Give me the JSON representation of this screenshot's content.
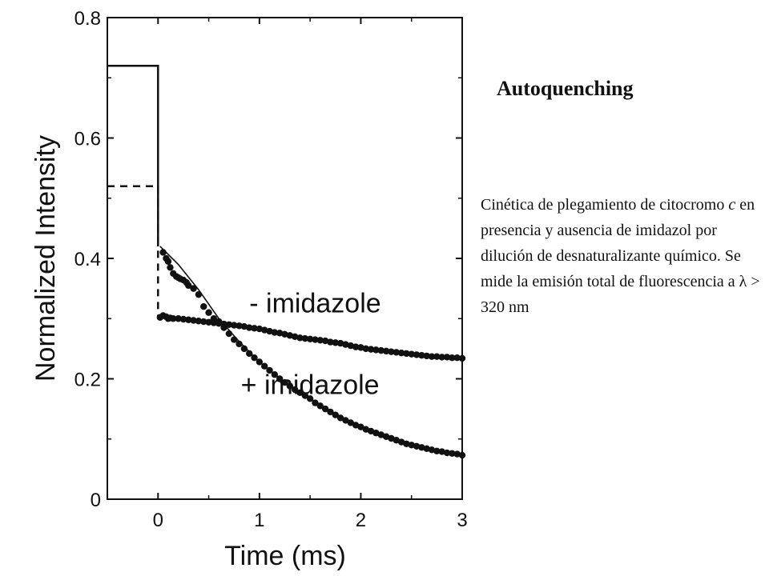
{
  "side": {
    "title": "Autoquenching",
    "desc_part1": "Cinética de plegamiento de citocromo ",
    "desc_italic": "c",
    "desc_part2": " en presencia y ausencia de imidazol por dilución de desnaturalizante químico. Se mide la emisión total  de fluorescencia a λ > 320 nm"
  },
  "chart_data": {
    "type": "line",
    "xlabel": "Time (ms)",
    "ylabel": "Normalized Intensity",
    "xlim": [
      -0.5,
      3
    ],
    "ylim": [
      0,
      0.8
    ],
    "xticks": [
      0,
      1,
      2,
      3
    ],
    "xtick_labels": [
      "0",
      "1",
      "2",
      "3"
    ],
    "yticks": [
      0,
      0.2,
      0.4,
      0.6,
      0.8
    ],
    "ytick_labels": [
      "0",
      "0.2",
      "0.4",
      "0.6",
      "0.8"
    ],
    "annotations": [
      {
        "text": "- imidazole",
        "x": 1.55,
        "y": 0.31
      },
      {
        "text": "+ imidazole",
        "x": 1.5,
        "y": 0.175
      }
    ],
    "series": [
      {
        "style": "solid-step",
        "x": [
          -0.5,
          0.0,
          0.0
        ],
        "y": [
          0.72,
          0.72,
          0.42
        ]
      },
      {
        "style": "dashed-step",
        "x": [
          -0.5,
          0.0,
          0.0
        ],
        "y": [
          0.52,
          0.52,
          0.305
        ]
      },
      {
        "style": "dots",
        "x": [
          0.02,
          0.05,
          0.08,
          0.1,
          0.12,
          0.15,
          0.2,
          0.25,
          0.3,
          0.35,
          0.4,
          0.45,
          0.5,
          0.55,
          0.6,
          0.65,
          0.7,
          0.75,
          0.8,
          0.85,
          0.9,
          0.95,
          1.0,
          1.05,
          1.1,
          1.15,
          1.2,
          1.25,
          1.3,
          1.35,
          1.4,
          1.45,
          1.5,
          1.55,
          1.6,
          1.65,
          1.7,
          1.75,
          1.8,
          1.85,
          1.9,
          1.95,
          2.0,
          2.05,
          2.1,
          2.15,
          2.2,
          2.25,
          2.3,
          2.35,
          2.4,
          2.45,
          2.5,
          2.55,
          2.6,
          2.65,
          2.7,
          2.75,
          2.8,
          2.85,
          2.9,
          2.95,
          3.0
        ],
        "y": [
          0.302,
          0.305,
          0.303,
          0.3,
          0.301,
          0.3,
          0.3,
          0.299,
          0.298,
          0.297,
          0.296,
          0.295,
          0.294,
          0.293,
          0.292,
          0.291,
          0.29,
          0.289,
          0.288,
          0.287,
          0.285,
          0.284,
          0.283,
          0.281,
          0.279,
          0.277,
          0.276,
          0.274,
          0.272,
          0.27,
          0.268,
          0.267,
          0.266,
          0.265,
          0.264,
          0.263,
          0.261,
          0.26,
          0.259,
          0.257,
          0.255,
          0.253,
          0.252,
          0.25,
          0.249,
          0.248,
          0.247,
          0.246,
          0.245,
          0.244,
          0.243,
          0.242,
          0.241,
          0.24,
          0.239,
          0.238,
          0.237,
          0.237,
          0.236,
          0.236,
          0.235,
          0.235,
          0.234
        ]
      },
      {
        "style": "dots",
        "x": [
          0.05,
          0.08,
          0.1,
          0.12,
          0.15,
          0.18,
          0.2,
          0.22,
          0.25,
          0.28,
          0.3,
          0.35,
          0.4,
          0.45,
          0.5,
          0.55,
          0.6,
          0.65,
          0.7,
          0.75,
          0.8,
          0.85,
          0.9,
          0.95,
          1.0,
          1.05,
          1.1,
          1.15,
          1.2,
          1.25,
          1.3,
          1.35,
          1.4,
          1.45,
          1.5,
          1.55,
          1.6,
          1.65,
          1.7,
          1.75,
          1.8,
          1.85,
          1.9,
          1.95,
          2.0,
          2.05,
          2.1,
          2.15,
          2.2,
          2.25,
          2.3,
          2.35,
          2.4,
          2.45,
          2.5,
          2.55,
          2.6,
          2.65,
          2.7,
          2.75,
          2.8,
          2.85,
          2.9,
          2.95,
          3.0
        ],
        "y": [
          0.41,
          0.4,
          0.395,
          0.385,
          0.375,
          0.37,
          0.368,
          0.366,
          0.364,
          0.36,
          0.355,
          0.35,
          0.34,
          0.32,
          0.31,
          0.3,
          0.295,
          0.285,
          0.275,
          0.265,
          0.258,
          0.25,
          0.242,
          0.235,
          0.228,
          0.221,
          0.214,
          0.207,
          0.2,
          0.194,
          0.188,
          0.182,
          0.177,
          0.172,
          0.167,
          0.16,
          0.155,
          0.15,
          0.145,
          0.14,
          0.135,
          0.131,
          0.127,
          0.123,
          0.12,
          0.116,
          0.113,
          0.11,
          0.107,
          0.104,
          0.101,
          0.098,
          0.095,
          0.092,
          0.09,
          0.088,
          0.086,
          0.084,
          0.082,
          0.08,
          0.079,
          0.077,
          0.076,
          0.075,
          0.073
        ]
      },
      {
        "style": "fit-line",
        "x": [
          0.02,
          0.2,
          0.4,
          0.6,
          0.8,
          1.0,
          1.2,
          1.4,
          1.6,
          1.8,
          2.0,
          2.2,
          2.4,
          2.6,
          2.8,
          3.0
        ],
        "y": [
          0.42,
          0.39,
          0.348,
          0.3,
          0.262,
          0.228,
          0.2,
          0.178,
          0.155,
          0.136,
          0.12,
          0.107,
          0.096,
          0.087,
          0.08,
          0.073
        ]
      }
    ]
  }
}
